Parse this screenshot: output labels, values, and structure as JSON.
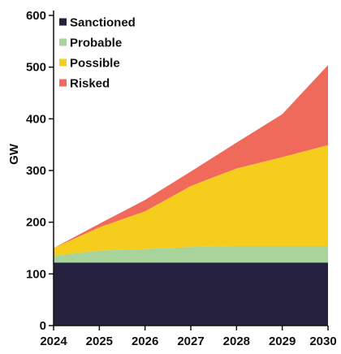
{
  "chart_data": {
    "type": "area",
    "stacked": true,
    "title": "",
    "xlabel": "",
    "ylabel": "GW",
    "x": [
      "2024",
      "2025",
      "2026",
      "2027",
      "2028",
      "2029",
      "2030"
    ],
    "ylim": [
      0,
      600
    ],
    "yticks": [
      0,
      100,
      200,
      300,
      400,
      500,
      600
    ],
    "grid": false,
    "legend_position": "top-left",
    "series": [
      {
        "name": "Sanctioned",
        "color": "#25213f",
        "values": [
          122,
          122,
          122,
          122,
          122,
          122,
          122
        ]
      },
      {
        "name": "Probable",
        "color": "#a8d39a",
        "values": [
          13,
          23,
          26,
          30,
          32,
          32,
          32
        ]
      },
      {
        "name": "Possible",
        "color": "#f6cd1c",
        "values": [
          15,
          45,
          73,
          118,
          150,
          172,
          195
        ]
      },
      {
        "name": "Risked",
        "color": "#ef6a5b",
        "values": [
          0,
          7,
          22,
          28,
          50,
          83,
          155
        ]
      }
    ]
  }
}
